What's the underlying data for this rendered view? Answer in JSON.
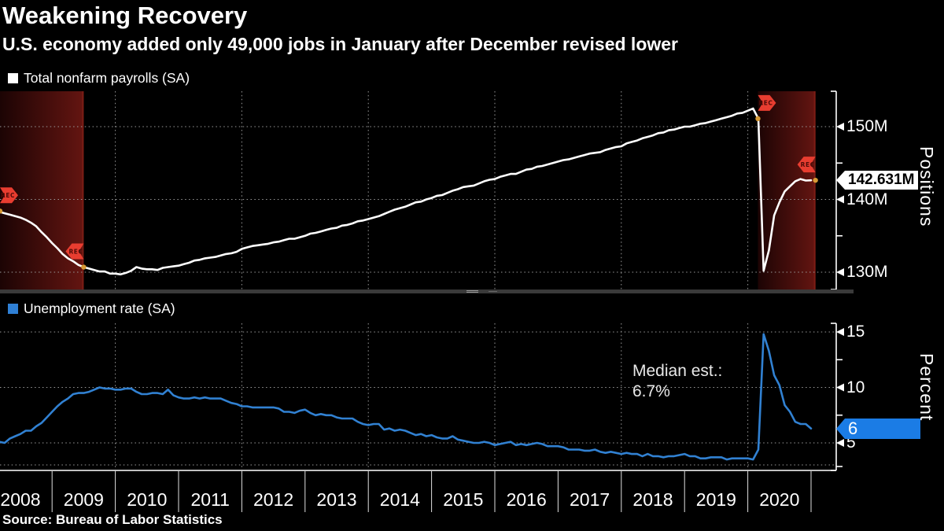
{
  "header": {
    "title": "Weakening Recovery",
    "subtitle": "U.S. economy added only 49,000 jobs in January after December revised lower"
  },
  "source_note": "Source: Bureau of Labor Statistics",
  "colors": {
    "background": "#000000",
    "payroll_line": "#ffffff",
    "unemployment_line": "#3181d2",
    "value_pill_blue": "#1b7ce5",
    "recession_badge_red": "#e83d30",
    "recession_band_dark": "#1c0404",
    "recession_band_light": "#641511",
    "recession_band_rim": "#7c1d15",
    "marker_orange": "#d79a35",
    "grid": "#9a9a9a"
  },
  "x_axis": {
    "years": [
      "2008",
      "2009",
      "2010",
      "2011",
      "2012",
      "2013",
      "2014",
      "2015",
      "2016",
      "2017",
      "2018",
      "2019",
      "2020"
    ]
  },
  "chart_data": [
    {
      "type": "line",
      "title": "Total nonfarm payrolls (SA)",
      "legend_label": "Total nonfarm payrolls (SA)",
      "unit_label": "Positions",
      "color": "#ffffff",
      "x_start_year": 2008,
      "x_step": "monthly",
      "ylim": [
        126.9,
        154.9
      ],
      "yticks": [
        {
          "value": 150,
          "label": "150M"
        },
        {
          "value": 140,
          "label": "140M"
        },
        {
          "value": 130,
          "label": "130M"
        }
      ],
      "yticks_minor": [
        145,
        135
      ],
      "last_value_label": "142.631M",
      "recession_label": "REC",
      "recessions": [
        {
          "start_year": 2007.92,
          "end_year": 2009.5
        },
        {
          "start_year": 2020.16,
          "end_year": 2021.07
        }
      ],
      "values": [
        138.4,
        138.4,
        138.3,
        138.1,
        137.9,
        137.7,
        137.5,
        137.2,
        136.8,
        136.3,
        135.5,
        134.8,
        134.0,
        133.3,
        132.5,
        131.9,
        131.5,
        131.0,
        130.7,
        130.5,
        130.3,
        130.1,
        130.1,
        129.8,
        129.8,
        129.7,
        129.9,
        130.2,
        130.7,
        130.5,
        130.4,
        130.4,
        130.3,
        130.6,
        130.7,
        130.8,
        130.9,
        131.1,
        131.3,
        131.6,
        131.7,
        131.9,
        132.0,
        132.1,
        132.3,
        132.5,
        132.6,
        132.8,
        133.2,
        133.4,
        133.6,
        133.7,
        133.8,
        133.9,
        134.1,
        134.2,
        134.4,
        134.6,
        134.6,
        134.8,
        135.0,
        135.3,
        135.4,
        135.6,
        135.8,
        136.0,
        136.1,
        136.4,
        136.5,
        136.7,
        137.0,
        137.1,
        137.3,
        137.5,
        137.7,
        138.0,
        138.3,
        138.6,
        138.8,
        139.0,
        139.3,
        139.6,
        139.7,
        140.0,
        140.2,
        140.5,
        140.6,
        140.9,
        141.2,
        141.4,
        141.7,
        141.8,
        141.9,
        142.2,
        142.5,
        142.7,
        142.8,
        143.1,
        143.3,
        143.5,
        143.5,
        143.8,
        144.1,
        144.2,
        144.5,
        144.6,
        144.8,
        145.0,
        145.2,
        145.4,
        145.5,
        145.7,
        145.9,
        146.1,
        146.3,
        146.4,
        146.5,
        146.8,
        147.0,
        147.2,
        147.3,
        147.7,
        147.9,
        148.1,
        148.4,
        148.6,
        148.8,
        149.1,
        149.2,
        149.5,
        149.6,
        149.8,
        150.0,
        150.0,
        150.2,
        150.4,
        150.5,
        150.7,
        150.9,
        151.1,
        151.3,
        151.5,
        151.8,
        151.9,
        152.2,
        152.5,
        151.1,
        130.2,
        133.0,
        137.8,
        139.6,
        141.1,
        141.8,
        142.5,
        142.8,
        142.6,
        142.631
      ]
    },
    {
      "type": "line",
      "title": "Unemployment rate (SA)",
      "legend_label": "Unemployment rate (SA)",
      "unit_label": "Percent",
      "color": "#3181d2",
      "x_start_year": 2008,
      "x_step": "monthly",
      "ylim": [
        2.5,
        15.8
      ],
      "yticks": [
        {
          "value": 15,
          "label": "15"
        },
        {
          "value": 10,
          "label": "10"
        },
        {
          "value": 5,
          "label": "5"
        }
      ],
      "yticks_minor": [
        12.5,
        7.5
      ],
      "last_value_label": "6",
      "annotation": {
        "line1": "Median est.:",
        "line2": "6.7%"
      },
      "values": [
        5.0,
        4.9,
        5.1,
        5.0,
        5.4,
        5.6,
        5.8,
        6.1,
        6.1,
        6.5,
        6.8,
        7.3,
        7.8,
        8.3,
        8.7,
        9.0,
        9.4,
        9.5,
        9.5,
        9.6,
        9.8,
        10.0,
        9.9,
        9.9,
        9.8,
        9.8,
        9.9,
        9.9,
        9.6,
        9.4,
        9.4,
        9.5,
        9.5,
        9.4,
        9.8,
        9.3,
        9.1,
        9.0,
        9.0,
        9.1,
        9.0,
        9.1,
        9.0,
        9.0,
        9.0,
        8.8,
        8.6,
        8.5,
        8.3,
        8.3,
        8.2,
        8.2,
        8.2,
        8.2,
        8.2,
        8.1,
        7.8,
        7.8,
        7.7,
        7.9,
        8.0,
        7.7,
        7.5,
        7.6,
        7.5,
        7.5,
        7.3,
        7.2,
        7.2,
        7.2,
        6.9,
        6.7,
        6.6,
        6.7,
        6.7,
        6.2,
        6.3,
        6.1,
        6.2,
        6.1,
        5.9,
        5.7,
        5.8,
        5.6,
        5.7,
        5.5,
        5.4,
        5.4,
        5.6,
        5.3,
        5.2,
        5.1,
        5.0,
        5.0,
        5.1,
        5.0,
        4.8,
        4.9,
        5.0,
        5.1,
        4.8,
        4.9,
        4.8,
        4.9,
        5.0,
        4.9,
        4.7,
        4.7,
        4.7,
        4.6,
        4.4,
        4.4,
        4.4,
        4.3,
        4.3,
        4.4,
        4.2,
        4.1,
        4.2,
        4.1,
        4.0,
        4.1,
        4.0,
        4.0,
        3.8,
        4.0,
        3.8,
        3.8,
        3.7,
        3.8,
        3.8,
        3.9,
        4.0,
        3.8,
        3.8,
        3.6,
        3.6,
        3.7,
        3.7,
        3.7,
        3.5,
        3.6,
        3.6,
        3.6,
        3.6,
        3.5,
        4.4,
        14.8,
        13.3,
        11.1,
        10.2,
        8.4,
        7.8,
        6.9,
        6.7,
        6.7,
        6.3
      ]
    }
  ]
}
